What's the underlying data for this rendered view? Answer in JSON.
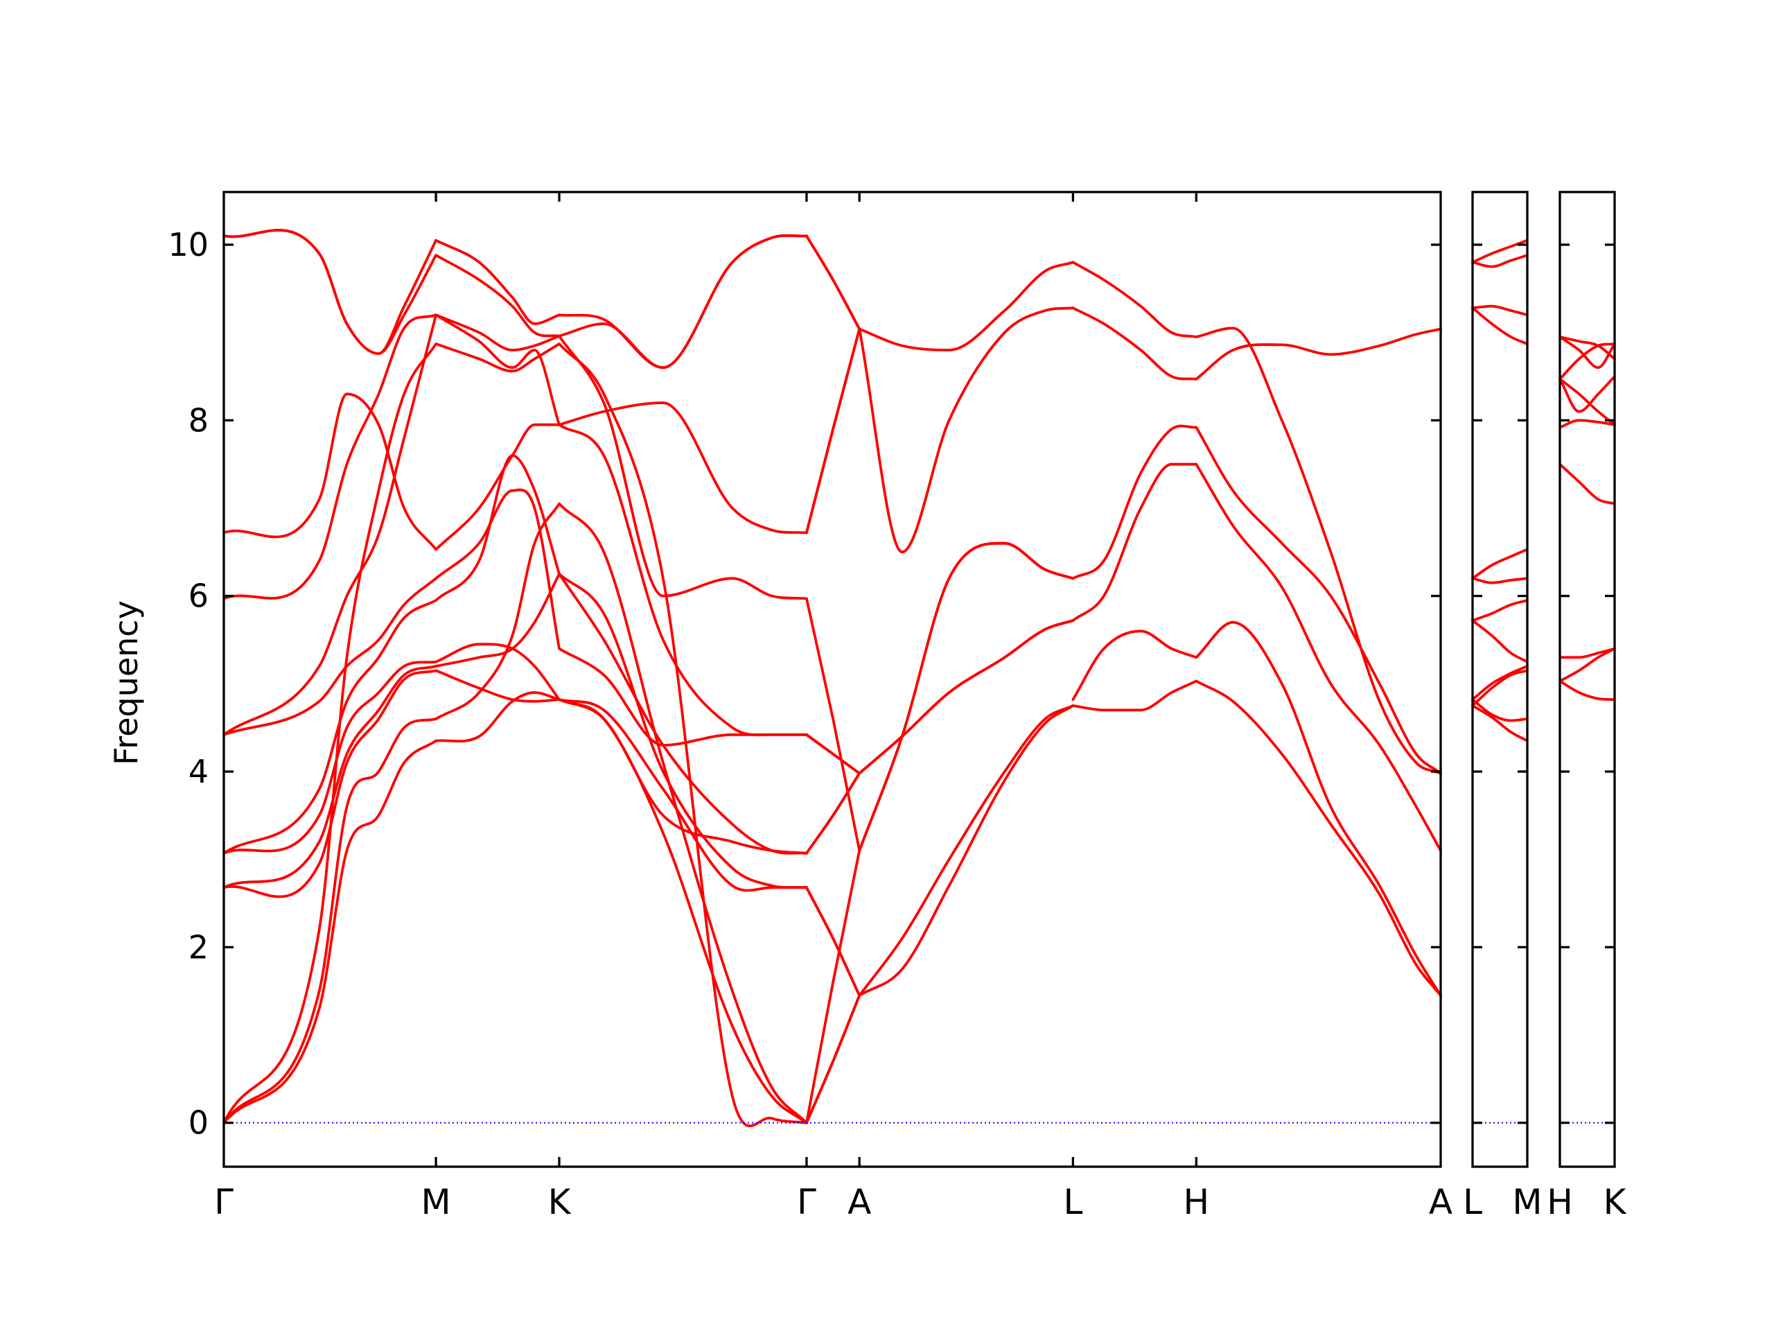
{
  "chart_data": {
    "type": "line",
    "ylabel": "Frequency",
    "ylim": [
      -0.5,
      10.6
    ],
    "yticks": [
      0,
      2,
      4,
      6,
      8,
      10
    ],
    "grid": false,
    "legend": "none",
    "colors": {
      "bands": "#ff0000",
      "zero_line": "#0000ff",
      "axes": "#000000"
    },
    "panels": [
      {
        "labels": [
          "Γ",
          "M",
          "K",
          "Γ",
          "A",
          "L",
          "H",
          "A"
        ],
        "segments": [
          [
            [
              0,
              0.45,
              0.58,
              0.73,
              0.85,
              1.0
            ],
            [
              0,
              1.3,
              3.1,
              3.5,
              4.1,
              4.35
            ],
            [
              0,
              1.5,
              3.6,
              4.0,
              4.5,
              4.6
            ],
            [
              2.68,
              2.95,
              4.1,
              4.6,
              5.05,
              5.15
            ],
            [
              2.68,
              3.2,
              4.2,
              4.7,
              5.1,
              5.2
            ],
            [
              3.07,
              3.5,
              4.5,
              4.9,
              5.2,
              5.25
            ],
            [
              3.07,
              3.8,
              4.8,
              5.3,
              5.75,
              5.95
            ],
            [
              4.42,
              4.8,
              5.2,
              5.5,
              5.9,
              6.2
            ],
            [
              4.42,
              5.2,
              6.0,
              6.7,
              7.8,
              9.2
            ],
            [
              0,
              2.2,
              5.3,
              7.2,
              8.3,
              8.87
            ],
            [
              5.97,
              6.4,
              7.5,
              8.3,
              9.05,
              9.2
            ],
            [
              6.72,
              7.1,
              8.3,
              7.95,
              7.0,
              6.53
            ],
            [
              10.1,
              9.9,
              9.1,
              8.76,
              9.2,
              9.88
            ],
            [
              10.1,
              9.9,
              9.1,
              8.76,
              9.3,
              10.05
            ]
          ],
          [
            [
              0,
              0.35,
              0.62,
              0.8,
              1.0
            ],
            [
              4.35,
              4.4,
              4.8,
              4.9,
              4.82
            ],
            [
              4.6,
              4.9,
              5.55,
              6.6,
              7.05
            ],
            [
              5.15,
              4.95,
              4.82,
              4.8,
              4.82
            ],
            [
              5.2,
              5.3,
              5.4,
              5.7,
              6.25
            ],
            [
              5.25,
              5.45,
              5.4,
              5.2,
              4.82
            ],
            [
              5.95,
              6.4,
              7.6,
              7.2,
              6.25
            ],
            [
              6.2,
              6.6,
              7.2,
              7.0,
              5.4
            ],
            [
              9.2,
              8.9,
              8.6,
              8.8,
              7.95
            ],
            [
              8.87,
              8.7,
              8.56,
              8.7,
              8.87
            ],
            [
              9.2,
              9.0,
              8.8,
              8.85,
              8.96
            ],
            [
              6.53,
              7.0,
              7.6,
              7.95,
              7.95
            ],
            [
              9.88,
              9.6,
              9.3,
              9.0,
              8.96
            ],
            [
              10.05,
              9.8,
              9.4,
              9.1,
              9.2
            ]
          ],
          [
            [
              0,
              0.18,
              0.42,
              0.7,
              0.86,
              1.0
            ],
            [
              4.82,
              4.6,
              3.3,
              1.1,
              0.3,
              0
            ],
            [
              7.05,
              6.5,
              4.1,
              1.5,
              0.4,
              0
            ],
            [
              4.82,
              4.7,
              3.8,
              2.7,
              2.68,
              2.68
            ],
            [
              6.25,
              5.8,
              4.0,
              2.9,
              2.7,
              2.68
            ],
            [
              4.82,
              4.6,
              3.5,
              3.2,
              3.1,
              3.07
            ],
            [
              6.25,
              5.5,
              4.3,
              3.4,
              3.1,
              3.07
            ],
            [
              5.4,
              5.1,
              4.3,
              4.42,
              4.42,
              4.42
            ],
            [
              7.95,
              7.6,
              5.5,
              4.5,
              4.42,
              4.42
            ],
            [
              8.87,
              8.3,
              6.2,
              0.3,
              0.05,
              0
            ],
            [
              8.96,
              8.2,
              6.0,
              6.2,
              6.0,
              5.97
            ],
            [
              7.95,
              8.1,
              8.2,
              7.0,
              6.75,
              6.72
            ],
            [
              8.96,
              9.1,
              8.6,
              9.8,
              10.08,
              10.1
            ],
            [
              9.2,
              9.15,
              8.6,
              9.8,
              10.08,
              10.1
            ]
          ],
          [
            [
              0,
              0.5,
              1.0
            ],
            [
              0,
              0.7,
              1.45
            ],
            [
              0,
              0.7,
              1.45
            ],
            [
              2.68,
              2.1,
              1.45
            ],
            [
              2.68,
              2.1,
              1.45
            ],
            [
              3.07,
              3.5,
              3.98
            ],
            [
              3.07,
              3.5,
              3.98
            ],
            [
              4.42,
              4.2,
              3.98
            ],
            [
              4.42,
              4.2,
              3.98
            ],
            [
              0,
              1.6,
              3.1
            ],
            [
              5.97,
              4.6,
              3.1
            ],
            [
              6.72,
              7.9,
              9.04
            ],
            [
              6.72,
              7.9,
              9.04
            ],
            [
              10.1,
              9.6,
              9.04
            ],
            [
              10.1,
              9.6,
              9.04
            ]
          ],
          [
            [
              0,
              0.2,
              0.42,
              0.68,
              0.87,
              1.0
            ],
            [
              1.45,
              2.1,
              3.0,
              4.0,
              4.6,
              4.75
            ],
            [
              1.45,
              1.75,
              2.7,
              3.9,
              4.55,
              4.75
            ],
            [
              3.98,
              4.4,
              4.9,
              5.3,
              5.62,
              5.72
            ],
            [
              3.98,
              4.4,
              4.9,
              5.3,
              5.62,
              5.72
            ],
            [
              3.1,
              4.4,
              6.2,
              6.6,
              6.3,
              6.2
            ],
            [
              3.1,
              4.4,
              6.2,
              6.6,
              6.3,
              6.2
            ],
            [
              9.04,
              8.85,
              8.8,
              9.25,
              9.7,
              9.8
            ],
            [
              9.04,
              6.5,
              8.0,
              9.0,
              9.25,
              9.28
            ]
          ],
          [
            [
              0,
              0.25,
              0.55,
              0.8,
              1.0
            ],
            [
              4.75,
              4.7,
              4.7,
              4.9,
              5.03
            ],
            [
              4.82,
              5.4,
              5.6,
              5.4,
              5.3
            ],
            [
              5.72,
              6.0,
              7.0,
              7.5,
              7.5
            ],
            [
              6.2,
              6.4,
              7.4,
              7.9,
              7.92
            ],
            [
              9.8,
              9.6,
              9.3,
              9.0,
              8.95
            ],
            [
              9.28,
              9.1,
              8.8,
              8.5,
              8.47
            ]
          ],
          [
            [
              0,
              0.15,
              0.35,
              0.55,
              0.75,
              0.9,
              1.0
            ],
            [
              5.03,
              4.8,
              4.2,
              3.4,
              2.6,
              1.8,
              1.45
            ],
            [
              5.3,
              5.7,
              5.0,
              3.6,
              2.7,
              1.9,
              1.45
            ],
            [
              7.5,
              6.8,
              6.1,
              5.0,
              4.3,
              3.6,
              3.1
            ],
            [
              7.92,
              7.2,
              6.6,
              6.0,
              5.0,
              4.2,
              3.98
            ],
            [
              8.95,
              9.05,
              8.0,
              6.5,
              4.8,
              4.1,
              3.98
            ],
            [
              8.47,
              8.8,
              8.86,
              8.75,
              8.85,
              8.98,
              9.04
            ]
          ]
        ]
      },
      {
        "labels": [
          "L",
          "M"
        ],
        "segments": [
          [
            [
              0,
              0.35,
              0.7,
              1.0
            ],
            [
              4.75,
              4.62,
              4.45,
              4.35
            ],
            [
              4.82,
              4.65,
              4.58,
              4.6
            ],
            [
              4.75,
              4.95,
              5.1,
              5.15
            ],
            [
              4.82,
              5.0,
              5.12,
              5.2
            ],
            [
              5.72,
              5.55,
              5.35,
              5.25
            ],
            [
              5.72,
              5.8,
              5.9,
              5.95
            ],
            [
              6.2,
              6.15,
              6.18,
              6.2
            ],
            [
              6.2,
              6.35,
              6.45,
              6.53
            ],
            [
              9.28,
              9.1,
              8.95,
              8.87
            ],
            [
              9.28,
              9.3,
              9.25,
              9.2
            ],
            [
              9.8,
              9.75,
              9.82,
              9.88
            ],
            [
              9.8,
              9.9,
              9.98,
              10.05
            ]
          ]
        ]
      },
      {
        "labels": [
          "H",
          "K"
        ],
        "segments": [
          [
            [
              0,
              0.35,
              0.7,
              1.0
            ],
            [
              5.03,
              4.9,
              4.83,
              4.82
            ],
            [
              5.3,
              5.3,
              5.35,
              5.4
            ],
            [
              5.03,
              5.15,
              5.3,
              5.4
            ],
            [
              7.5,
              7.3,
              7.1,
              7.05
            ],
            [
              7.92,
              8.0,
              7.98,
              7.95
            ],
            [
              8.47,
              8.3,
              8.1,
              7.95
            ],
            [
              8.47,
              8.7,
              8.85,
              8.87
            ],
            [
              8.95,
              8.8,
              8.6,
              8.87
            ],
            [
              8.47,
              8.1,
              8.3,
              8.5
            ],
            [
              8.95,
              8.9,
              8.85,
              8.7
            ]
          ]
        ]
      }
    ]
  }
}
